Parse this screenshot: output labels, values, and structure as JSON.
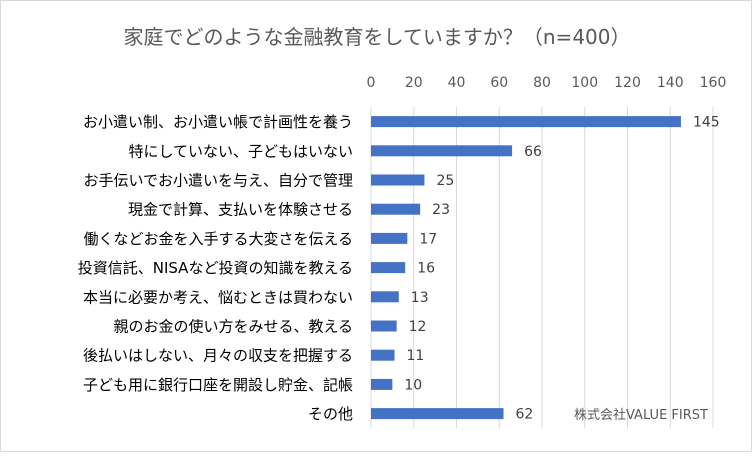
{
  "chart_data": {
    "type": "bar",
    "orientation": "horizontal",
    "title": "家庭でどのような金融教育をしていますか？（n=400）",
    "xlim": [
      0,
      160
    ],
    "ticks": [
      "0",
      "20",
      "40",
      "60",
      "80",
      "100",
      "120",
      "140",
      "160"
    ],
    "tick_values": [
      0,
      20,
      40,
      60,
      80,
      100,
      120,
      140,
      160
    ],
    "grid": true,
    "bar_color": "#4472C4",
    "categories": [
      "お小遣い制、お小遣い帳で計画性を養う",
      "特にしていない、子どもはいない",
      "お手伝いでお小遣いを与え、自分で管理",
      "現金で計算、支払いを体験させる",
      "働くなどお金を入手する大変さを伝える",
      "投資信託、NISAなど投資の知識を教える",
      "本当に必要か考え、悩むときは買わない",
      "親のお金の使い方をみせる、教える",
      "後払いはしない、月々の収支を把握する",
      "子ども用に銀行口座を開設し貯金、記帳",
      "その他"
    ],
    "values": [
      145,
      66,
      25,
      23,
      17,
      16,
      13,
      12,
      11,
      10,
      62
    ],
    "data_labels": [
      "145",
      "66",
      "25",
      "23",
      "17",
      "16",
      "13",
      "12",
      "11",
      "10",
      "62"
    ]
  },
  "watermark": "株式会社VALUE FIRST"
}
